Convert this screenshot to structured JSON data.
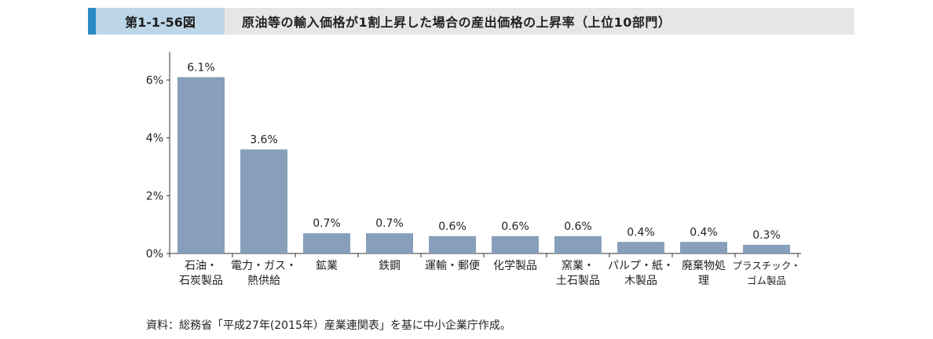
{
  "header": {
    "figure_label": "第1-1-56図",
    "title": "原油等の輸入価格が1割上昇した場合の産出価格の上昇率（上位10部門）"
  },
  "chart_data": {
    "type": "bar",
    "categories": [
      [
        "石油・",
        "石炭製品"
      ],
      [
        "電力・ガス・",
        "熱供給"
      ],
      [
        "鉱業"
      ],
      [
        "鉄鋼"
      ],
      [
        "運輸・郵便"
      ],
      [
        "化学製品"
      ],
      [
        "窯業・",
        "土石製品"
      ],
      [
        "パルプ・紙・",
        "木製品"
      ],
      [
        "廃棄物処",
        "理"
      ],
      [
        "プラスチック・",
        "ゴム製品"
      ]
    ],
    "values": [
      6.1,
      3.6,
      0.7,
      0.7,
      0.6,
      0.6,
      0.6,
      0.4,
      0.4,
      0.3
    ],
    "value_labels": [
      "6.1%",
      "3.6%",
      "0.7%",
      "0.7%",
      "0.6%",
      "0.6%",
      "0.6%",
      "0.4%",
      "0.4%",
      "0.3%"
    ],
    "yticks": [
      0,
      2,
      4,
      6
    ],
    "ytick_labels": [
      "0%",
      "2%",
      "4%",
      "6%"
    ],
    "ylim": [
      0,
      7
    ],
    "bar_color": "#879fba",
    "grid": false
  },
  "source": "資料：総務省「平成27年(2015年）産業連関表」を基に中小企業庁作成。"
}
